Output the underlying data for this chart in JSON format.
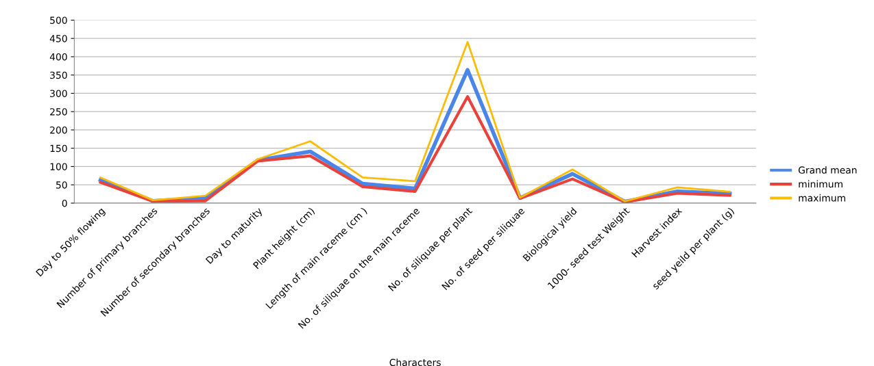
{
  "chart_data": {
    "type": "line",
    "xlabel": "Characters",
    "categories": [
      "Day to 50% flowing",
      "Number of primary branches",
      "Number of secondary branches",
      "Day to maturity",
      "Plant height (cm)",
      "Length of main raceme (cm )",
      "No. of siliquae on the main raceme",
      "No. of siliquae per plant",
      "No. of seed per siliquae",
      "Biological yield",
      "1000- seed test Weight",
      "Harvest index",
      "seed yeild per plant (g)"
    ],
    "series": [
      {
        "name": "Grand mean",
        "color": "#4a86e8",
        "values": [
          63,
          6,
          14,
          117,
          141,
          53,
          40,
          364,
          14,
          80,
          4,
          32,
          26
        ]
      },
      {
        "name": "minimum",
        "color": "#e8423b",
        "values": [
          57,
          5,
          6,
          115,
          129,
          45,
          32,
          291,
          13,
          66,
          3,
          27,
          21
        ]
      },
      {
        "name": "maximum",
        "color": "#fbbc05",
        "values": [
          70,
          8,
          20,
          120,
          169,
          70,
          60,
          440,
          15,
          92,
          5,
          43,
          31
        ]
      }
    ],
    "ylim": [
      0,
      500
    ],
    "yticks": [
      0,
      50,
      100,
      150,
      200,
      250,
      300,
      350,
      400,
      450,
      500
    ],
    "grid": "y",
    "legend": "right",
    "marker": "none",
    "line_style": "solid"
  }
}
